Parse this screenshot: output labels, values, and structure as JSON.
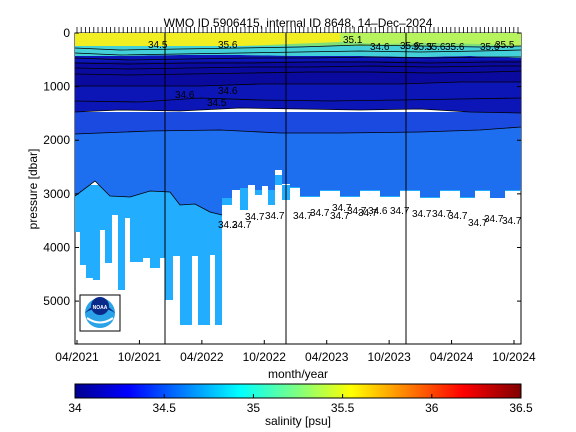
{
  "chart_data": {
    "type": "heatmap",
    "title": "WMO ID 5906415, internal ID 8648, 14–Dec–2024",
    "xlabel": "month/year",
    "ylabel": "pressure [dbar]",
    "x_ticks": [
      "04/2021",
      "10/2021",
      "04/2022",
      "10/2022",
      "04/2023",
      "10/2023",
      "04/2024",
      "10/2024"
    ],
    "y_ticks": [
      0,
      1000,
      2000,
      3000,
      4000,
      5000
    ],
    "ylim": [
      0,
      5800
    ],
    "y_reversed": true,
    "colorbar": {
      "label": "salinity [psu]",
      "ticks": [
        "34",
        "34.5",
        "35",
        "35.5",
        "36",
        "36.5"
      ],
      "range": [
        34,
        36.5
      ]
    },
    "layers": [
      {
        "depth_range": [
          0,
          150
        ],
        "salinity": 35.2
      },
      {
        "depth_range": [
          150,
          600
        ],
        "salinity": 34.55
      },
      {
        "depth_range": [
          600,
          2700
        ],
        "salinity": 34.7
      },
      {
        "depth_range": [
          2700,
          5400
        ],
        "salinity": 34.75
      }
    ],
    "contour_labels": [
      "34.6",
      "34.5",
      "34.6",
      "34.5",
      "35.6",
      "34.6",
      "35.6",
      "34.7",
      "34.2",
      "34.7",
      "34.7",
      "34.7",
      "34.7",
      "34.7",
      "34.7",
      "34.6",
      "34.7",
      "34.7",
      "34.7",
      "34.7",
      "34.7",
      "34.7",
      "34.7",
      "34.7",
      "34.7",
      "35.1",
      "35.5",
      "35.6",
      "35.6",
      "35.5",
      "35.6"
    ],
    "logo": "NOAA",
    "colors": {
      "deep_blue": "#0a14b0",
      "mid_blue": "#1e50ee",
      "light_blue": "#1aa8ff",
      "lighter_blue": "#2bb7ff",
      "surface_yellow": "#f2ee1e",
      "surface_green": "#a8f060"
    }
  }
}
